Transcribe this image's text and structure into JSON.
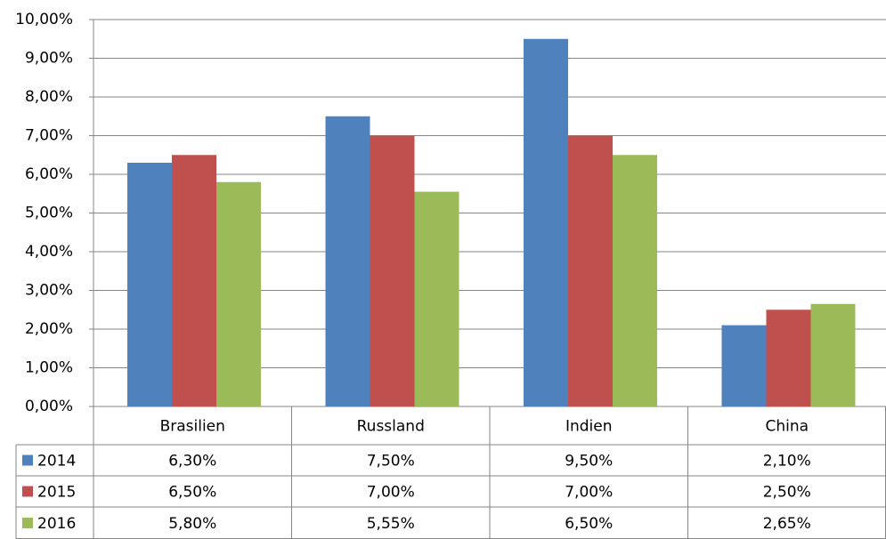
{
  "chart_data": {
    "type": "bar",
    "categories": [
      "Brasilien",
      "Russland",
      "Indien",
      "China"
    ],
    "series": [
      {
        "name": "2014",
        "color": "#4f81bd",
        "values": [
          6.3,
          7.5,
          9.5,
          2.1
        ],
        "value_labels": [
          "6,30%",
          "7,50%",
          "9,50%",
          "2,10%"
        ]
      },
      {
        "name": "2015",
        "color": "#c0504d",
        "values": [
          6.5,
          7.0,
          7.0,
          2.5
        ],
        "value_labels": [
          "6,50%",
          "7,00%",
          "7,00%",
          "2,50%"
        ]
      },
      {
        "name": "2016",
        "color": "#9bbb59",
        "values": [
          5.8,
          5.55,
          6.5,
          2.65
        ],
        "value_labels": [
          "5,80%",
          "5,55%",
          "6,50%",
          "2,65%"
        ]
      }
    ],
    "ylim": [
      0,
      10
    ],
    "yticks": [
      {
        "value": 0,
        "label": "0,00%"
      },
      {
        "value": 1,
        "label": "1,00%"
      },
      {
        "value": 2,
        "label": "2,00%"
      },
      {
        "value": 3,
        "label": "3,00%"
      },
      {
        "value": 4,
        "label": "4,00%"
      },
      {
        "value": 5,
        "label": "5,00%"
      },
      {
        "value": 6,
        "label": "6,00%"
      },
      {
        "value": 7,
        "label": "7,00%"
      },
      {
        "value": 8,
        "label": "8,00%"
      },
      {
        "value": 9,
        "label": "9,00%"
      },
      {
        "value": 10,
        "label": "10,00%"
      }
    ],
    "grid": true
  }
}
